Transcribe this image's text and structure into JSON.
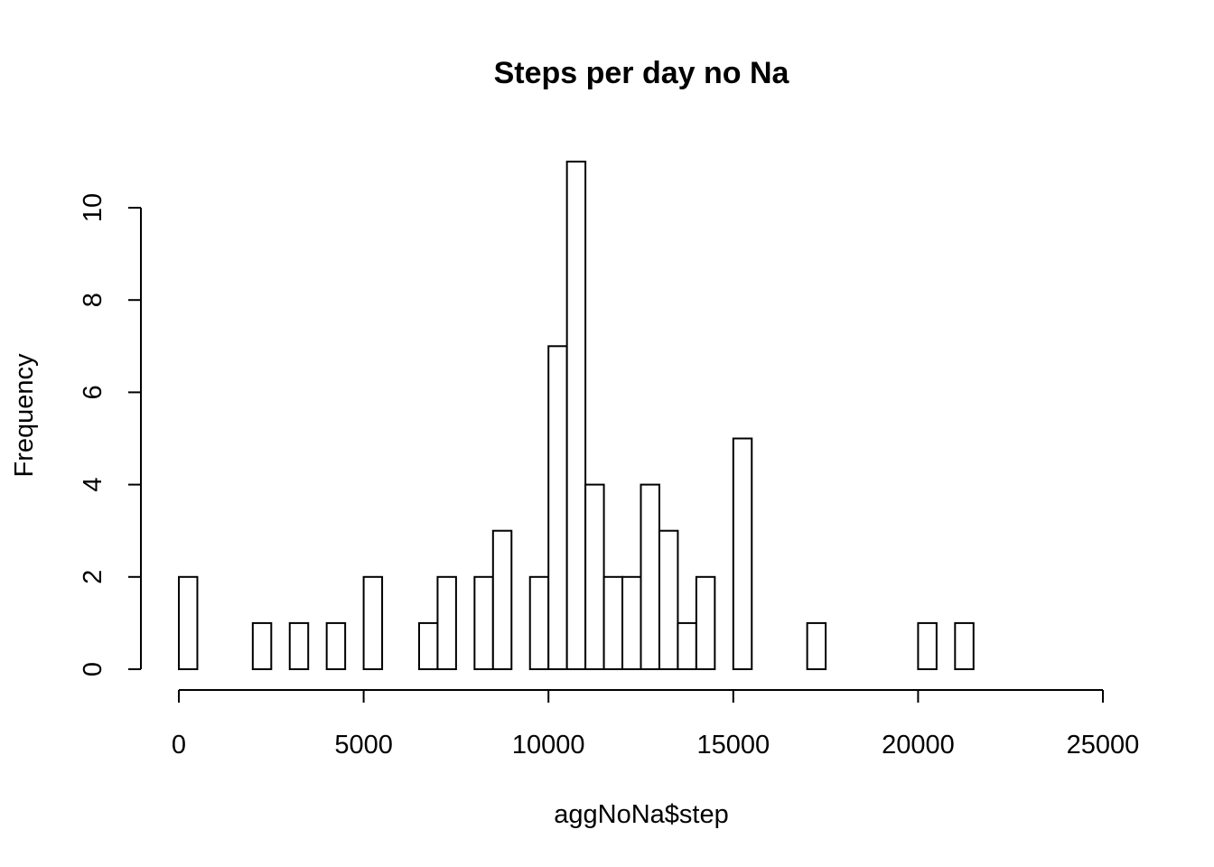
{
  "chart_data": {
    "type": "bar",
    "title": "Steps per day no Na",
    "xlabel": "aggNoNa$step",
    "ylabel": "Frequency",
    "bin_width": 500,
    "bins_start": [
      0,
      500,
      1000,
      1500,
      2000,
      2500,
      3000,
      3500,
      4000,
      4500,
      5000,
      5500,
      6000,
      6500,
      7000,
      7500,
      8000,
      8500,
      9000,
      9500,
      10000,
      10500,
      11000,
      11500,
      12000,
      12500,
      13000,
      13500,
      14000,
      14500,
      15000,
      15500,
      16000,
      16500,
      17000,
      17500,
      18000,
      18500,
      19000,
      19500,
      20000,
      20500,
      21000
    ],
    "values": [
      2,
      0,
      0,
      0,
      1,
      0,
      1,
      0,
      1,
      0,
      2,
      0,
      0,
      1,
      2,
      0,
      2,
      3,
      0,
      2,
      7,
      11,
      4,
      2,
      2,
      4,
      3,
      1,
      2,
      0,
      5,
      0,
      0,
      0,
      1,
      0,
      0,
      0,
      0,
      0,
      1,
      0,
      1
    ],
    "xlim": [
      0,
      25000
    ],
    "ylim": [
      0,
      11
    ],
    "x_ticks": [
      "0",
      "5000",
      "10000",
      "15000",
      "20000",
      "25000"
    ],
    "y_ticks": [
      "0",
      "2",
      "4",
      "6",
      "8",
      "10"
    ],
    "grid": false,
    "legend": "none"
  }
}
